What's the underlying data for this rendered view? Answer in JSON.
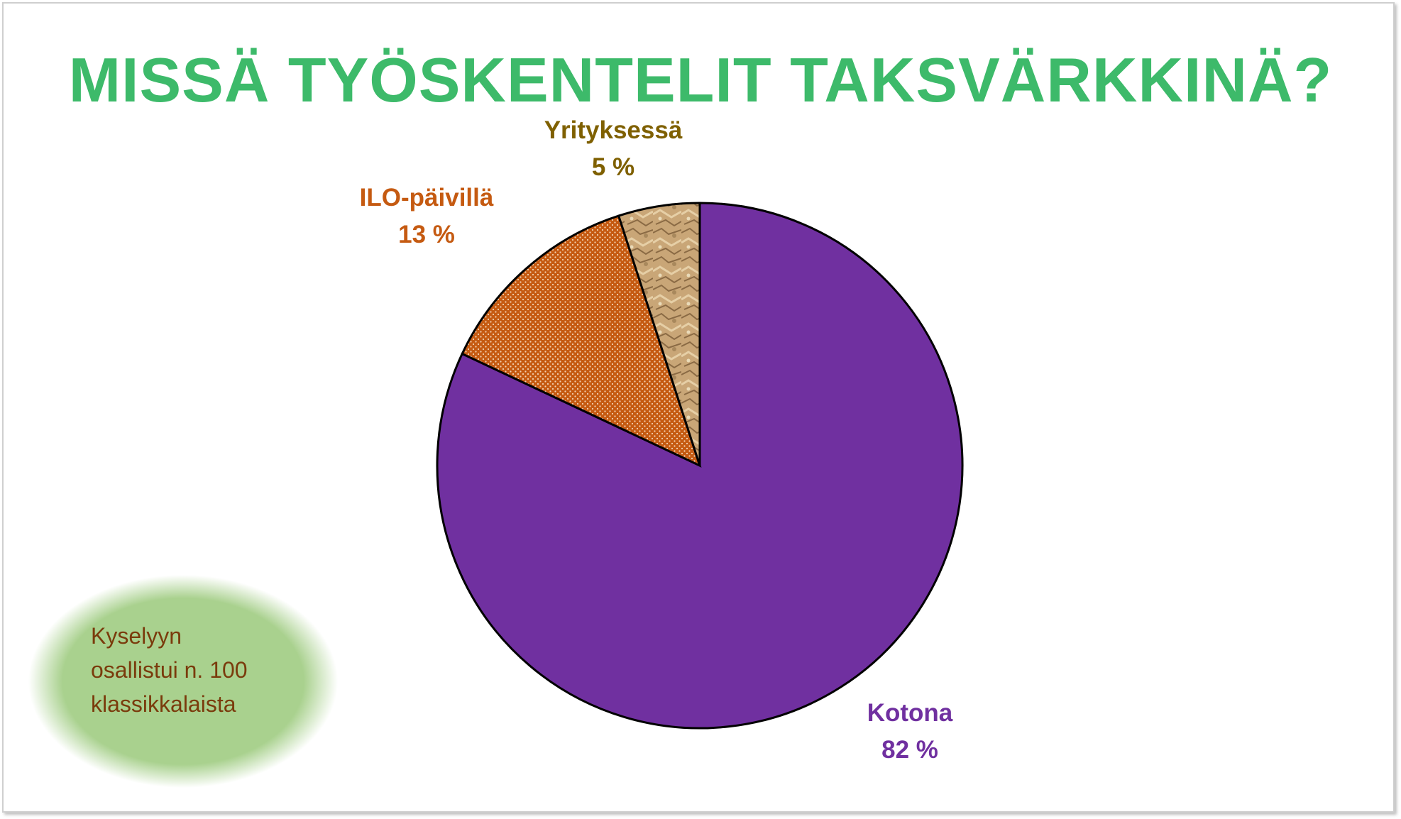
{
  "chart_data": {
    "type": "pie",
    "title": "MISSÄ TYÖSKENTELIT TAKSVÄRKKINÄ?",
    "slices": [
      {
        "label": "Kotona",
        "value": 82,
        "value_label": "82 %",
        "color": "#7030a0",
        "label_color": "#7030a0",
        "fill": "solid"
      },
      {
        "label": "ILO-päivillä",
        "value": 13,
        "value_label": "13 %",
        "color": "#c55a11",
        "label_color": "#c55a11",
        "fill": "dotted"
      },
      {
        "label": "Yrityksessä",
        "value": 5,
        "value_label": "5 %",
        "color": "#c8a57a",
        "label_color": "#7f6000",
        "fill": "texture"
      }
    ],
    "start_angle": "12 o'clock",
    "direction": "clockwise"
  },
  "note": {
    "lines": [
      "Kyselyyn",
      "osallistui n. 100",
      "klassikkalaista"
    ],
    "bg_color": "#a9d18e",
    "text_color": "#7a3b0c"
  }
}
